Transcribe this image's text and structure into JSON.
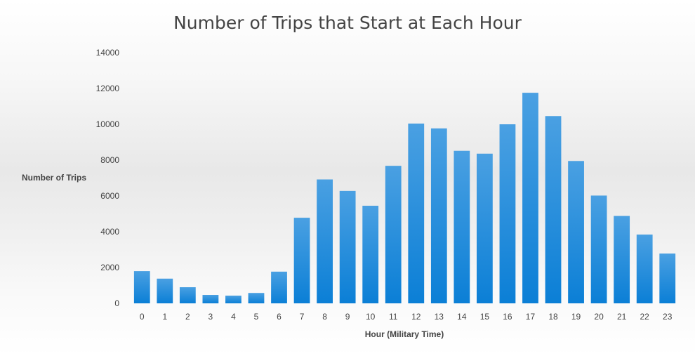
{
  "chart_data": {
    "type": "bar",
    "title": "Number of Trips that Start at Each Hour",
    "xlabel": "Hour (Military Time)",
    "ylabel": "Number of Trips",
    "ylim": [
      0,
      14000
    ],
    "yticks": [
      "0",
      "2000",
      "4000",
      "6000",
      "8000",
      "10000",
      "12000",
      "14000"
    ],
    "categories": [
      "0",
      "1",
      "2",
      "3",
      "4",
      "5",
      "6",
      "7",
      "8",
      "9",
      "10",
      "11",
      "12",
      "13",
      "14",
      "15",
      "16",
      "17",
      "18",
      "19",
      "20",
      "21",
      "22",
      "23"
    ],
    "values": [
      1800,
      1380,
      900,
      470,
      430,
      580,
      1770,
      4780,
      6920,
      6280,
      5450,
      7680,
      10040,
      9770,
      8520,
      8360,
      10000,
      11760,
      10460,
      7950,
      6020,
      4880,
      3840,
      2780
    ],
    "grid": false,
    "legend": "none",
    "bar_color": "#2f8fd8"
  }
}
